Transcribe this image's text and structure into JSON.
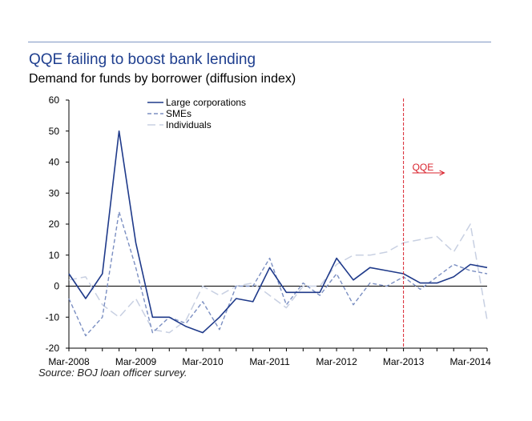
{
  "header": {
    "title": "QQE failing to boost bank lending",
    "subtitle": "Demand for funds by borrower (diffusion index)"
  },
  "footer": {
    "source": "Source: BOJ loan officer survey."
  },
  "colors": {
    "large": "#1f3a8a",
    "smes": "#7b8fc2",
    "individuals": "#c8d0e2",
    "annotation": "#d9232d",
    "rule": "#7f97c4"
  },
  "chart_data": {
    "type": "line",
    "title": "QQE failing to boost bank lending",
    "subtitle": "Demand for funds by borrower (diffusion index)",
    "xlabel": "",
    "ylabel": "",
    "ylim": [
      -20,
      60
    ],
    "yticks": [
      -20,
      -10,
      0,
      10,
      20,
      30,
      40,
      50,
      60
    ],
    "xlim_quarters": [
      0,
      25
    ],
    "xtick_labels": [
      "Mar-2008",
      "Mar-2009",
      "Mar-2010",
      "Mar-2011",
      "Mar-2012",
      "Mar-2013",
      "Mar-2014"
    ],
    "xtick_quarters": [
      0,
      4,
      8,
      12,
      16,
      20,
      24
    ],
    "grid": false,
    "legend_position": "top-left",
    "zero_line": true,
    "series": [
      {
        "name": "Large corporations",
        "style": "solid",
        "values": [
          4,
          -4,
          4,
          50,
          14,
          -10,
          -10,
          -13,
          -15,
          -10,
          -4,
          -5,
          6,
          -2,
          -2,
          -2,
          9,
          2,
          6,
          5,
          4,
          1,
          1,
          3,
          7,
          6
        ]
      },
      {
        "name": "SMEs",
        "style": "dashed",
        "values": [
          -4,
          -16,
          -10,
          24,
          6,
          -15,
          -10,
          -12,
          -5,
          -14,
          0,
          0,
          9,
          -6,
          1,
          -3,
          4,
          -6,
          1,
          0,
          3,
          -1,
          3,
          7,
          5,
          4
        ]
      },
      {
        "name": "Individuals",
        "style": "long-dashed",
        "values": [
          2,
          3,
          -6,
          -10,
          -4,
          -14,
          -15,
          -11,
          0,
          -3,
          0,
          1,
          -3,
          -7,
          0,
          0,
          7,
          10,
          10,
          11,
          14,
          15,
          16,
          11,
          20,
          -11
        ]
      }
    ],
    "annotations": [
      {
        "text": "QQE",
        "at_quarter": 20,
        "style": "vertical dashed line with arrow"
      }
    ]
  }
}
